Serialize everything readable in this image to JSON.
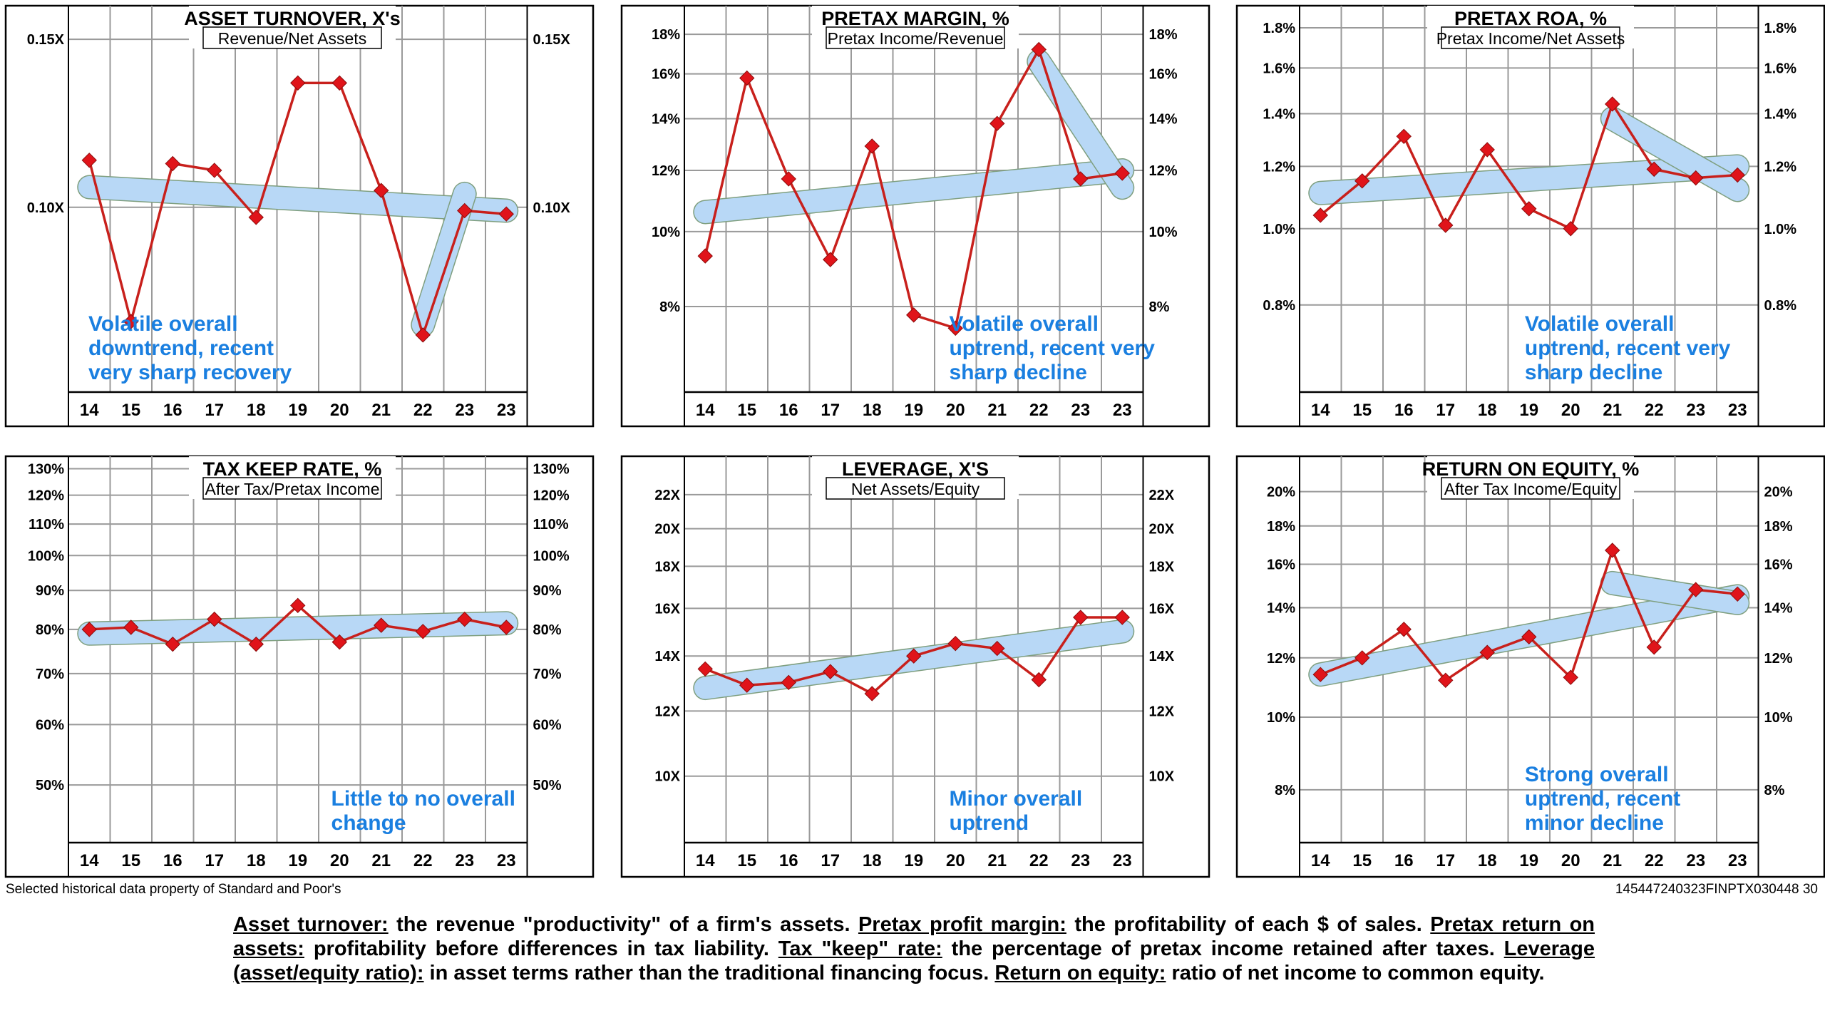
{
  "chart_data": [
    {
      "type": "line",
      "title": "ASSET TURNOVER, X's",
      "subtitle": "Revenue/Net Assets",
      "categories": [
        "14",
        "15",
        "16",
        "17",
        "18",
        "19",
        "20",
        "21",
        "22",
        "23",
        "23"
      ],
      "values": [
        0.114,
        0.066,
        0.113,
        0.111,
        0.097,
        0.137,
        0.137,
        0.105,
        0.062,
        0.099,
        0.098
      ],
      "ylim": [
        0.045,
        0.16
      ],
      "yticks": [
        {
          "value": 0.15,
          "label": "0.15X"
        },
        {
          "value": 0.1,
          "label": "0.10X"
        }
      ],
      "trend_long": [
        0.106,
        0.099
      ],
      "trend_recent": {
        "from": 8,
        "to": 9,
        "values": [
          0.065,
          0.104
        ]
      },
      "annotation": [
        "Volatile overall",
        "downtrend, recent",
        "very sharp recovery"
      ],
      "annotation_pos": "bottom-left"
    },
    {
      "type": "line",
      "title": "PRETAX MARGIN, %",
      "subtitle": "Pretax Income/Revenue",
      "categories": [
        "14",
        "15",
        "16",
        "17",
        "18",
        "19",
        "20",
        "21",
        "22",
        "23",
        "23"
      ],
      "values": [
        9.3,
        15.8,
        11.7,
        9.2,
        12.9,
        7.8,
        7.5,
        13.8,
        17.2,
        11.7,
        11.9
      ],
      "ylim": [
        6.2,
        19.6
      ],
      "yticks": [
        {
          "value": 18,
          "label": "18%"
        },
        {
          "value": 16,
          "label": "16%"
        },
        {
          "value": 14,
          "label": "14%"
        },
        {
          "value": 12,
          "label": "12%"
        },
        {
          "value": 10,
          "label": "10%"
        },
        {
          "value": 8,
          "label": "8%"
        }
      ],
      "trend_long": [
        10.6,
        12.0
      ],
      "trend_recent": {
        "from": 8,
        "to": 10,
        "values": [
          16.6,
          11.4
        ]
      },
      "annotation": [
        "Volatile overall",
        "uptrend, recent very",
        "sharp decline"
      ],
      "annotation_pos": "bottom-mid"
    },
    {
      "type": "line",
      "title": "PRETAX ROA, %",
      "subtitle": "Pretax Income/Net Assets",
      "categories": [
        "14",
        "15",
        "16",
        "17",
        "18",
        "19",
        "20",
        "21",
        "22",
        "23",
        "23"
      ],
      "values": [
        1.04,
        1.15,
        1.31,
        1.01,
        1.26,
        1.06,
        1.0,
        1.44,
        1.19,
        1.16,
        1.17
      ],
      "ylim": [
        0.62,
        1.92
      ],
      "yticks": [
        {
          "value": 1.8,
          "label": "1.8%"
        },
        {
          "value": 1.6,
          "label": "1.6%"
        },
        {
          "value": 1.4,
          "label": "1.4%"
        },
        {
          "value": 1.2,
          "label": "1.2%"
        },
        {
          "value": 1.0,
          "label": "1.0%"
        },
        {
          "value": 0.8,
          "label": "0.8%"
        }
      ],
      "trend_long": [
        1.11,
        1.2
      ],
      "trend_recent": {
        "from": 7,
        "to": 10,
        "values": [
          1.38,
          1.12
        ]
      },
      "annotation": [
        "Volatile overall",
        "uptrend, recent very",
        "sharp decline"
      ],
      "annotation_pos": "bottom-right"
    },
    {
      "type": "line",
      "title": "TAX KEEP RATE, %",
      "subtitle": "After Tax/Pretax Income",
      "categories": [
        "14",
        "15",
        "16",
        "17",
        "18",
        "19",
        "20",
        "21",
        "22",
        "23",
        "23"
      ],
      "values": [
        80,
        80.5,
        76.5,
        82.5,
        76.5,
        86,
        77,
        81,
        79.5,
        82.5,
        80.5
      ],
      "ylim": [
        42,
        135
      ],
      "yticks": [
        {
          "value": 130,
          "label": "130%"
        },
        {
          "value": 120,
          "label": "120%"
        },
        {
          "value": 110,
          "label": "110%"
        },
        {
          "value": 100,
          "label": "100%"
        },
        {
          "value": 90,
          "label": "90%"
        },
        {
          "value": 80,
          "label": "80%"
        },
        {
          "value": 70,
          "label": "70%"
        },
        {
          "value": 60,
          "label": "60%"
        },
        {
          "value": 50,
          "label": "50%"
        }
      ],
      "trend_long": [
        79,
        81.5
      ],
      "trend_recent": null,
      "annotation": [
        "Little to no overall",
        "change"
      ],
      "annotation_pos": "bottom-mid"
    },
    {
      "type": "line",
      "title": "LEVERAGE, X'S",
      "subtitle": "Net Assets/Equity",
      "categories": [
        "14",
        "15",
        "16",
        "17",
        "18",
        "19",
        "20",
        "21",
        "22",
        "23",
        "23"
      ],
      "values": [
        13.5,
        12.9,
        13.0,
        13.4,
        12.6,
        14.0,
        14.5,
        14.3,
        13.1,
        15.6,
        15.6
      ],
      "ylim": [
        8.3,
        24.5
      ],
      "yticks": [
        {
          "value": 22,
          "label": "22X"
        },
        {
          "value": 20,
          "label": "20X"
        },
        {
          "value": 18,
          "label": "18X"
        },
        {
          "value": 16,
          "label": "16X"
        },
        {
          "value": 14,
          "label": "14X"
        },
        {
          "value": 12,
          "label": "12X"
        },
        {
          "value": 10,
          "label": "10X"
        }
      ],
      "trend_long": [
        12.8,
        15.0
      ],
      "trend_recent": null,
      "annotation": [
        "Minor overall",
        "uptrend"
      ],
      "annotation_pos": "bottom-mid"
    },
    {
      "type": "line",
      "title": "RETURN ON EQUITY, %",
      "subtitle": "After Tax Income/Equity",
      "categories": [
        "14",
        "15",
        "16",
        "17",
        "18",
        "19",
        "20",
        "21",
        "22",
        "23",
        "23"
      ],
      "values": [
        11.4,
        12.0,
        13.1,
        11.2,
        12.2,
        12.8,
        11.3,
        16.7,
        12.4,
        14.8,
        14.6
      ],
      "ylim": [
        6.8,
        22.3
      ],
      "yticks": [
        {
          "value": 20,
          "label": "20%"
        },
        {
          "value": 18,
          "label": "18%"
        },
        {
          "value": 16,
          "label": "16%"
        },
        {
          "value": 14,
          "label": "14%"
        },
        {
          "value": 12,
          "label": "12%"
        },
        {
          "value": 10,
          "label": "10%"
        },
        {
          "value": 8,
          "label": "8%"
        }
      ],
      "trend_long": [
        11.4,
        14.5
      ],
      "trend_recent": {
        "from": 7,
        "to": 10,
        "values": [
          15.1,
          14.2
        ]
      },
      "annotation": [
        "Strong overall",
        "uptrend, recent",
        "minor decline"
      ],
      "annotation_pos": "bottom-right"
    }
  ],
  "colors": {
    "data_line": "#c8201c",
    "marker": "#e0141a",
    "trend": "#b8d8f6",
    "annotation": "#1a7fe0",
    "grid": "#9a9a9a"
  },
  "footer": {
    "source": "Selected historical data property of Standard and Poor's",
    "code": "145447240323FINPTX030448  30"
  },
  "glossary": [
    {
      "term": "Asset turnover:",
      "text": " the revenue \"productivity\" of a firm's assets. "
    },
    {
      "term": "Pretax profit margin:",
      "text": " the profitability of each $ of sales. "
    },
    {
      "term": "Pretax return on assets:",
      "text": " profitability before differences in tax liability. "
    },
    {
      "term": "Tax \"keep\" rate:",
      "text": " the percentage of pretax income retained after taxes. "
    },
    {
      "term": "Leverage (asset/equity ratio):",
      "text": " in asset terms rather than the traditional financing focus. "
    },
    {
      "term": "Return on equity:",
      "text": " ratio of net income to common equity."
    }
  ]
}
